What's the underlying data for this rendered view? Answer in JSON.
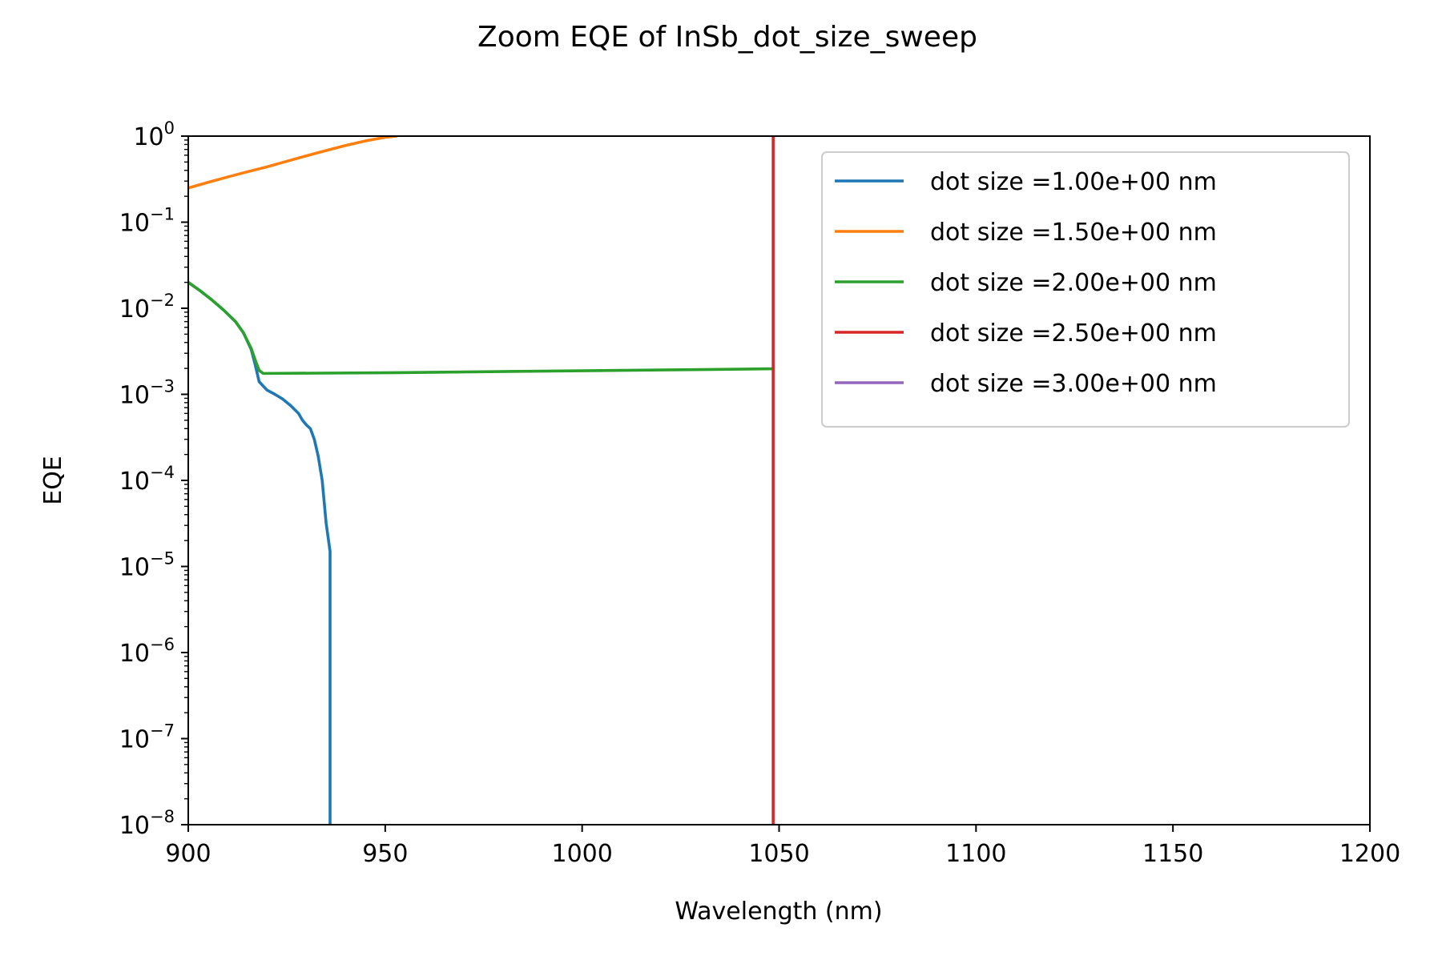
{
  "chart_data": {
    "type": "line",
    "title": "Zoom EQE of InSb_dot_size_sweep",
    "xlabel": "Wavelength (nm)",
    "ylabel": "EQE",
    "xlim": [
      900,
      1200
    ],
    "ylim": [
      1e-08,
      1
    ],
    "yscale": "log",
    "x_ticks": [
      900,
      950,
      1000,
      1050,
      1100,
      1150,
      1200
    ],
    "y_tick_exponents": [
      -8,
      -7,
      -6,
      -5,
      -4,
      -3,
      -2,
      -1,
      0
    ],
    "y_tick_base": "10",
    "grid": false,
    "legend_position": "top-right",
    "series": [
      {
        "name": "dot size =1.00e+00 nm",
        "color": "#1f77b4",
        "points": [
          [
            900,
            0.02
          ],
          [
            903,
            0.016
          ],
          [
            906,
            0.0125
          ],
          [
            909,
            0.0095
          ],
          [
            912,
            0.007
          ],
          [
            914,
            0.0052
          ],
          [
            916,
            0.0033
          ],
          [
            917,
            0.0022
          ],
          [
            918,
            0.0014
          ],
          [
            920,
            0.00112
          ],
          [
            922,
            0.001
          ],
          [
            924,
            0.00088
          ],
          [
            926,
            0.00074
          ],
          [
            928,
            0.0006
          ],
          [
            929,
            0.0005
          ],
          [
            930,
            0.00044
          ],
          [
            931,
            0.0004
          ],
          [
            932,
            0.0003
          ],
          [
            933,
            0.00019
          ],
          [
            934,
            0.0001
          ],
          [
            935,
            3.2e-05
          ],
          [
            936,
            1.5e-05
          ],
          [
            936,
            1e-08
          ]
        ]
      },
      {
        "name": "dot size =1.50e+00 nm",
        "color": "#ff7f0e",
        "points": [
          [
            900,
            0.25
          ],
          [
            905,
            0.29
          ],
          [
            910,
            0.335
          ],
          [
            915,
            0.385
          ],
          [
            920,
            0.44
          ],
          [
            925,
            0.51
          ],
          [
            930,
            0.59
          ],
          [
            935,
            0.68
          ],
          [
            940,
            0.78
          ],
          [
            945,
            0.88
          ],
          [
            950,
            0.97
          ],
          [
            953,
            1.0
          ]
        ]
      },
      {
        "name": "dot size =2.00e+00 nm",
        "color": "#2ca02c",
        "points": [
          [
            900,
            0.02
          ],
          [
            903,
            0.016
          ],
          [
            906,
            0.0125
          ],
          [
            909,
            0.0095
          ],
          [
            912,
            0.007
          ],
          [
            914,
            0.0052
          ],
          [
            916,
            0.0034
          ],
          [
            917,
            0.0025
          ],
          [
            918,
            0.0019
          ],
          [
            919,
            0.00175
          ],
          [
            920,
            0.00175
          ],
          [
            950,
            0.00178
          ],
          [
            1000,
            0.00188
          ],
          [
            1040,
            0.00196
          ],
          [
            1048.5,
            0.00198
          ]
        ]
      },
      {
        "name": "dot size =2.50e+00 nm",
        "color": "#d62728",
        "points": [
          [
            1048.5,
            1e-08
          ],
          [
            1048.5,
            1.0
          ]
        ]
      },
      {
        "name": "dot size =3.00e+00 nm",
        "color": "#9467bd",
        "points": []
      }
    ]
  }
}
